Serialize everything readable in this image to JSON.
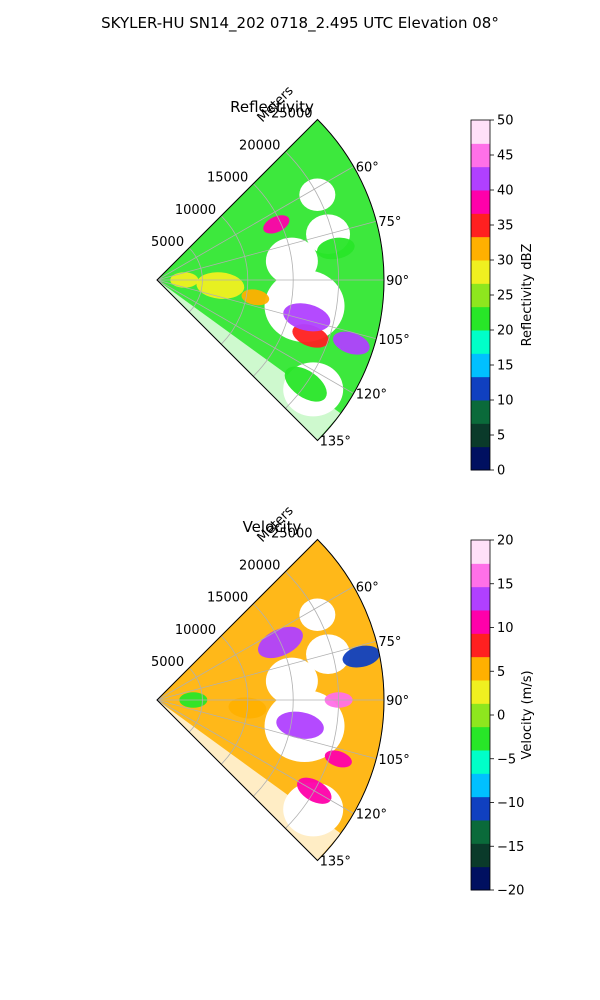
{
  "suptitle": "SKYLER-HU  SN14_202  0718_2.495 UTC Elevation 08°",
  "chart_data": [
    {
      "type": "polar sector (radar PPI)",
      "title": "Reflectivity",
      "r_label": "Meters",
      "r_ticks": [
        5000,
        10000,
        15000,
        20000,
        25000
      ],
      "r_tick_labels": [
        "5000",
        "10000",
        "15000",
        "20000",
        "25000"
      ],
      "rlim": [
        0,
        25000
      ],
      "theta_range_deg": [
        45,
        135
      ],
      "theta_ticks_deg": [
        60,
        75,
        90,
        105,
        120,
        135
      ],
      "theta_tick_labels": [
        "60°",
        "75°",
        "90°",
        "105°",
        "120°",
        "135°"
      ],
      "grid": true,
      "colorbar": {
        "label": "Reflectivity dBZ",
        "range": [
          0,
          50
        ],
        "ticks": [
          0,
          5,
          10,
          15,
          20,
          25,
          30,
          35,
          40,
          45,
          50
        ],
        "tick_labels": [
          "0",
          "5",
          "10",
          "15",
          "20",
          "25",
          "30",
          "35",
          "40",
          "45",
          "50"
        ],
        "colors": [
          "#001060",
          "#0a3a2a",
          "#0a6a3a",
          "#1040c0",
          "#00c0ff",
          "#00ffc8",
          "#28e628",
          "#8ee61e",
          "#f0f020",
          "#ffb000",
          "#ff2020",
          "#ff00aa",
          "#b040ff",
          "#ff70e8",
          "#ffe0f8"
        ]
      },
      "echo_features": [
        {
          "theta_deg": 100,
          "r": 11000,
          "value": 30
        },
        {
          "theta_deg": 110,
          "r": 18000,
          "value": 35
        },
        {
          "theta_deg": 95,
          "r": 7000,
          "value": 28
        },
        {
          "theta_deg": 65,
          "r": 14500,
          "value": 38
        },
        {
          "theta_deg": 108,
          "r": 22500,
          "value": 42
        },
        {
          "theta_deg": 104,
          "r": 17000,
          "value": 40
        },
        {
          "theta_deg": 90,
          "r": 3000,
          "value": 27
        },
        {
          "theta_deg": 80,
          "r": 20000,
          "value": 22
        },
        {
          "theta_deg": 125,
          "r": 20000,
          "value": 20
        }
      ]
    },
    {
      "type": "polar sector (radar PPI)",
      "title": "Velocity",
      "r_label": "Meters",
      "r_ticks": [
        5000,
        10000,
        15000,
        20000,
        25000
      ],
      "r_tick_labels": [
        "5000",
        "10000",
        "15000",
        "20000",
        "25000"
      ],
      "rlim": [
        0,
        25000
      ],
      "theta_range_deg": [
        45,
        135
      ],
      "theta_ticks_deg": [
        60,
        75,
        90,
        105,
        120,
        135
      ],
      "theta_tick_labels": [
        "60°",
        "75°",
        "90°",
        "105°",
        "120°",
        "135°"
      ],
      "grid": true,
      "colorbar": {
        "label": "Velocity (m/s)",
        "range": [
          -20,
          20
        ],
        "ticks": [
          -20,
          -15,
          -10,
          -5,
          0,
          5,
          10,
          15,
          20
        ],
        "tick_labels": [
          "−20",
          "−15",
          "−10",
          "−5",
          "0",
          "5",
          "10",
          "15",
          "20"
        ],
        "colors": [
          "#001060",
          "#0a3a2a",
          "#0a6a3a",
          "#1040c0",
          "#00c0ff",
          "#00ffc8",
          "#28e628",
          "#8ee61e",
          "#f0f020",
          "#ffb000",
          "#ff2020",
          "#ff00aa",
          "#b040ff",
          "#ff70e8",
          "#ffe0f8"
        ]
      },
      "echo_features": [
        {
          "theta_deg": 90,
          "r": 4000,
          "value": -2
        },
        {
          "theta_deg": 95,
          "r": 10000,
          "value": 5
        },
        {
          "theta_deg": 100,
          "r": 16000,
          "value": 13
        },
        {
          "theta_deg": 90,
          "r": 20000,
          "value": 15
        },
        {
          "theta_deg": 78,
          "r": 23000,
          "value": -12
        },
        {
          "theta_deg": 65,
          "r": 15000,
          "value": 12
        },
        {
          "theta_deg": 108,
          "r": 21000,
          "value": 11
        },
        {
          "theta_deg": 120,
          "r": 20000,
          "value": 10
        }
      ]
    }
  ]
}
